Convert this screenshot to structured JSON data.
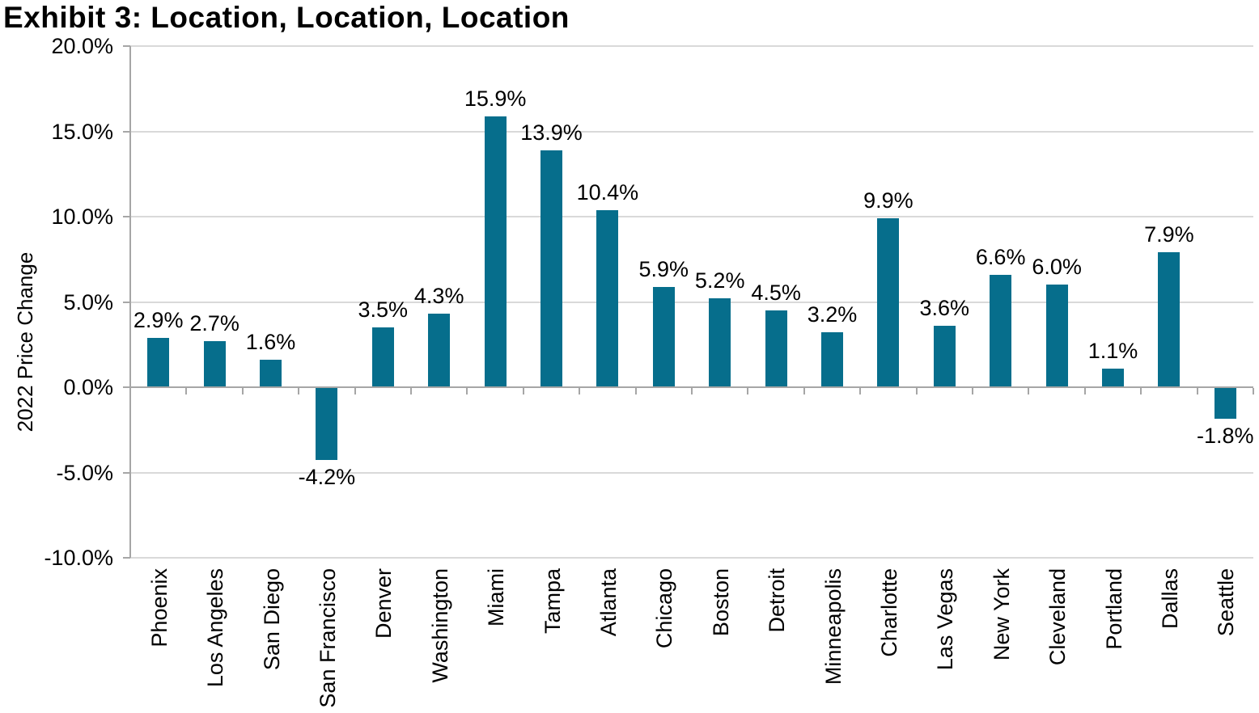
{
  "chart_data": {
    "type": "bar",
    "title": "Exhibit 3: Location, Location, Location",
    "ylabel": "2022 Price Change",
    "xlabel": "",
    "categories": [
      "Phoenix",
      "Los Angeles",
      "San Diego",
      "San Francisco",
      "Denver",
      "Washington",
      "Miami",
      "Tampa",
      "Atlanta",
      "Chicago",
      "Boston",
      "Detroit",
      "Minneapolis",
      "Charlotte",
      "Las Vegas",
      "New York",
      "Cleveland",
      "Portland",
      "Dallas",
      "Seattle"
    ],
    "values": [
      2.9,
      2.7,
      1.6,
      -4.2,
      3.5,
      4.3,
      15.9,
      13.9,
      10.4,
      5.9,
      5.2,
      4.5,
      3.2,
      9.9,
      3.6,
      6.6,
      6.0,
      1.1,
      7.9,
      -1.8
    ],
    "data_labels": [
      "2.9%",
      "2.7%",
      "1.6%",
      "-4.2%",
      "3.5%",
      "4.3%",
      "15.9%",
      "13.9%",
      "10.4%",
      "5.9%",
      "5.2%",
      "4.5%",
      "3.2%",
      "9.9%",
      "3.6%",
      "6.6%",
      "6.0%",
      "1.1%",
      "7.9%",
      "-1.8%"
    ],
    "y_ticks": [
      "20.0%",
      "15.0%",
      "10.0%",
      "5.0%",
      "0.0%",
      "-5.0%",
      "-10.0%"
    ],
    "ylim": [
      -10,
      20
    ],
    "grid": true,
    "legend": "none",
    "colors": {
      "bar": "#066E8C",
      "gridline": "#D9D9D9",
      "axis": "#A6A6A6",
      "text": "#000000",
      "background": "#FFFFFF"
    }
  }
}
